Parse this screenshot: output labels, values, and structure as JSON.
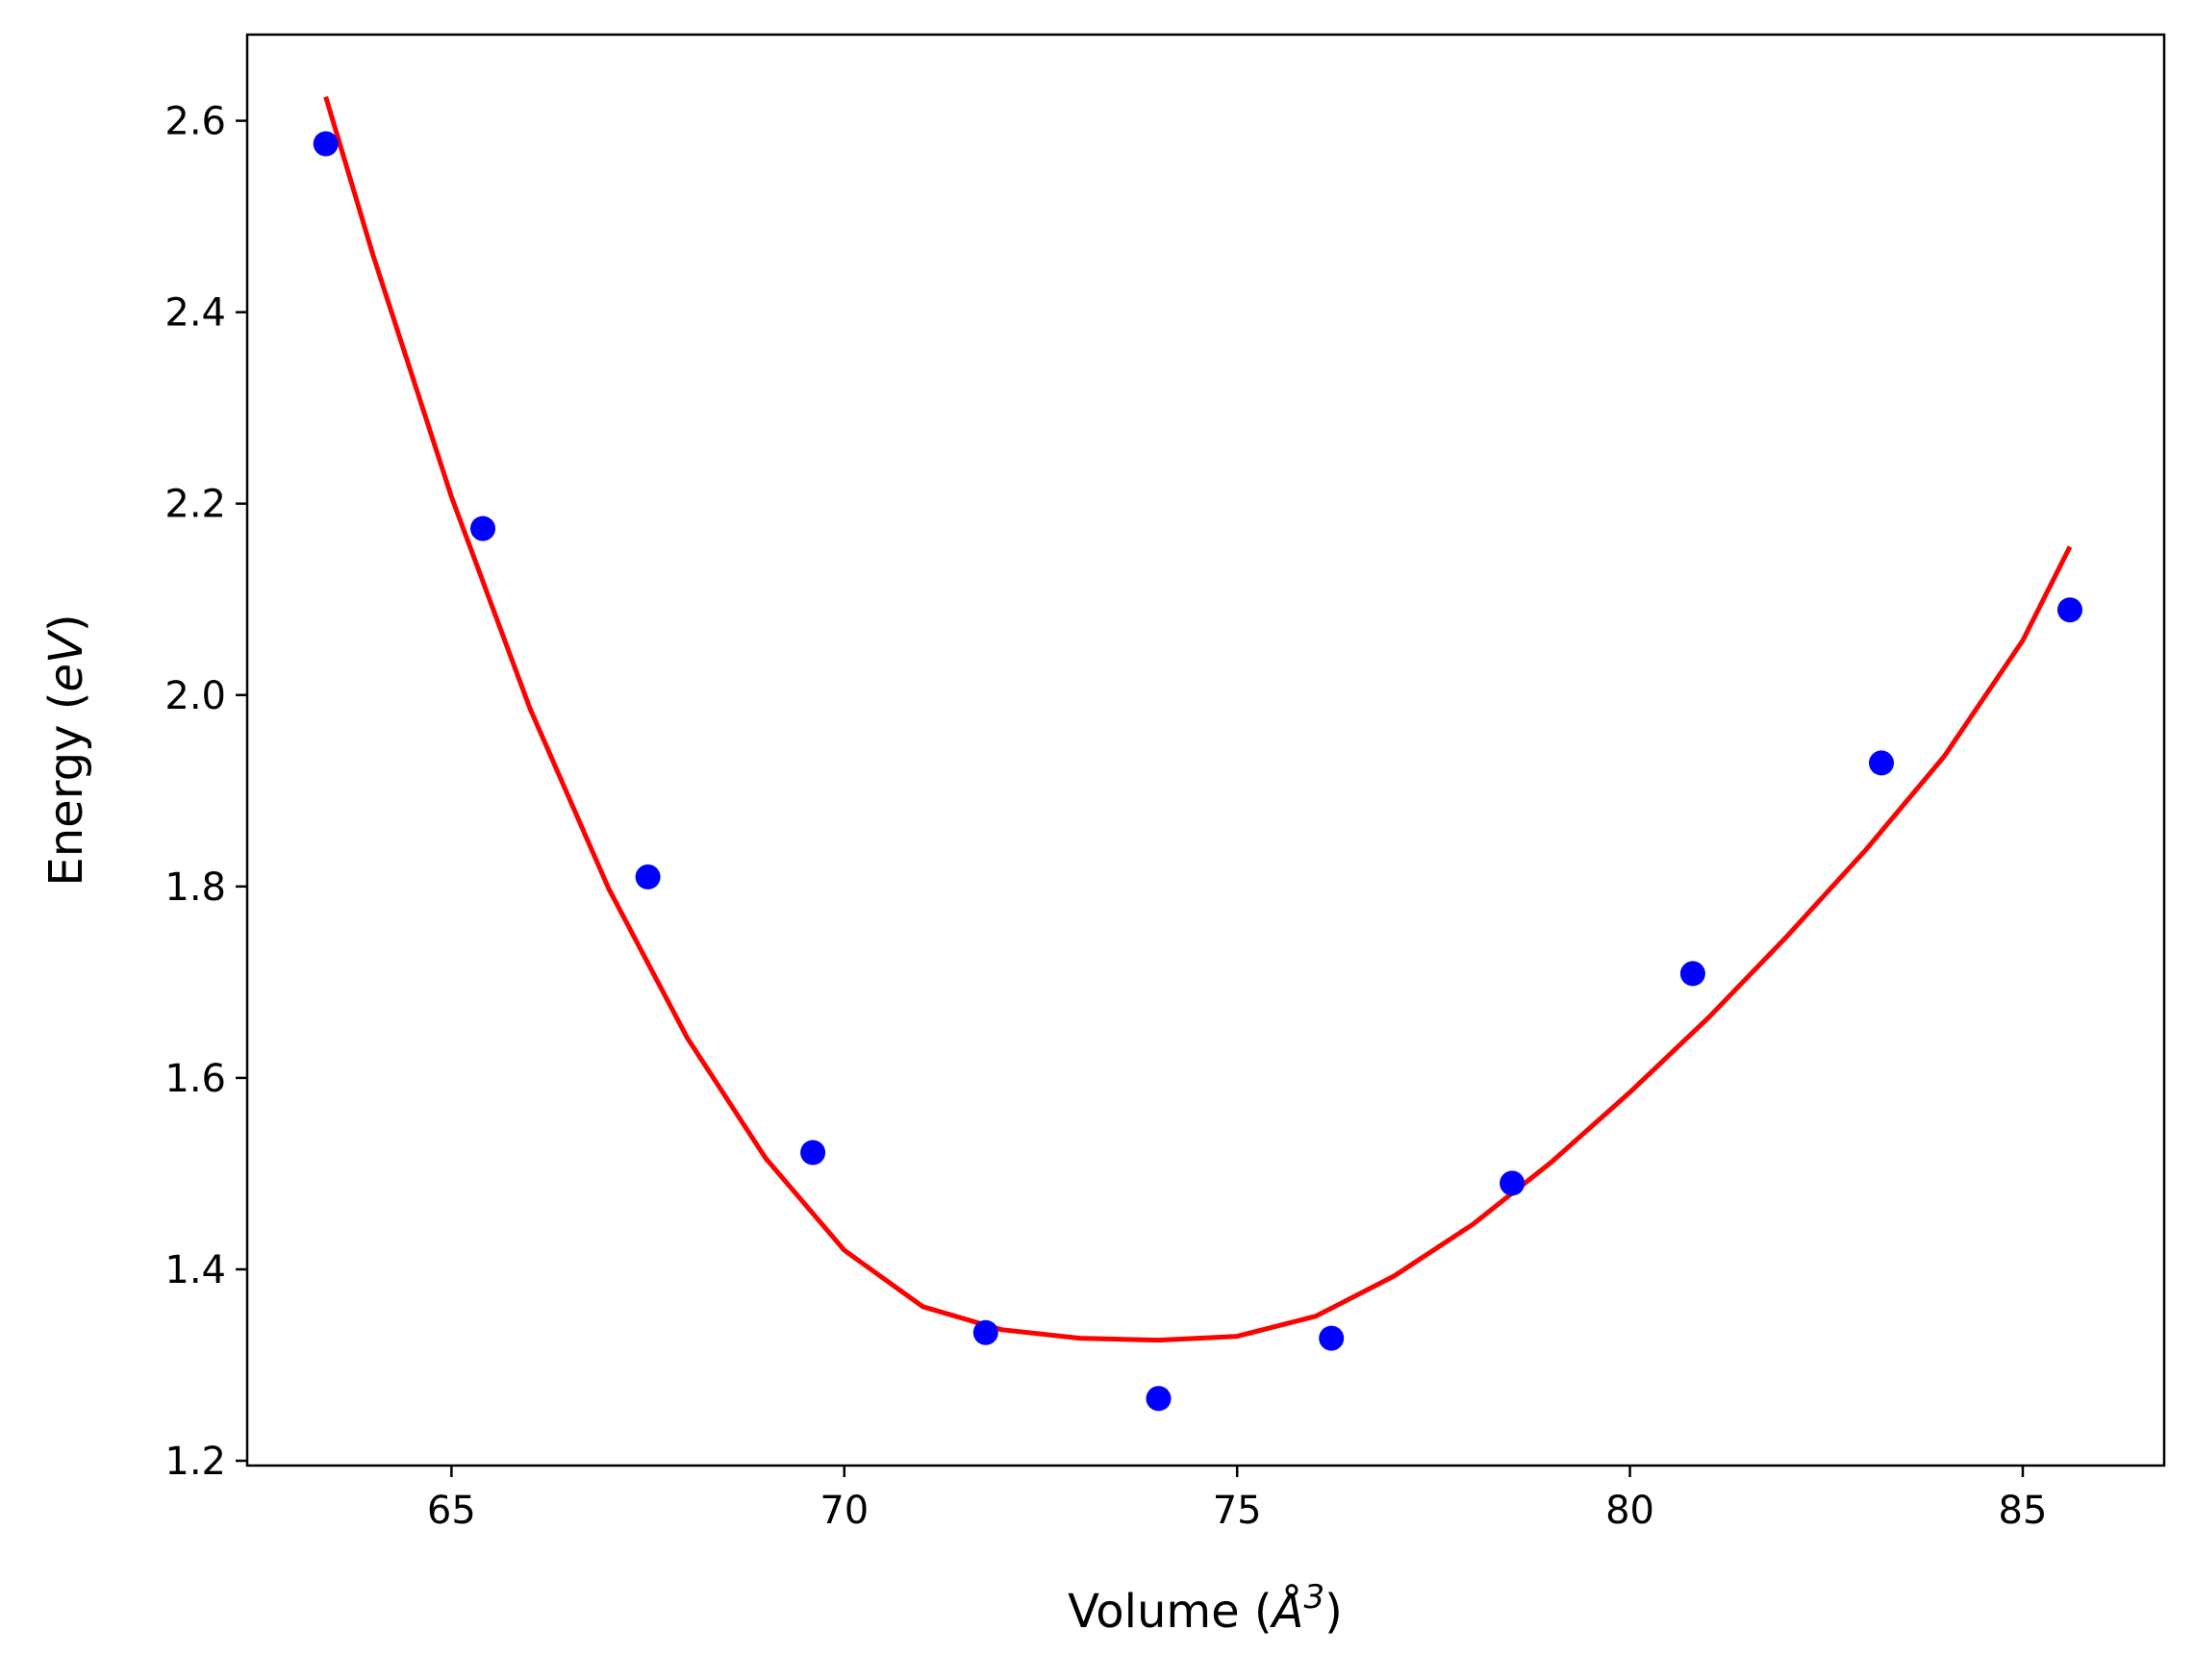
{
  "chart_data": {
    "type": "scatter",
    "title": "",
    "xlabel": {
      "prefix": "Volume (",
      "unit": "Å",
      "exponent": "3",
      "suffix": ")"
    },
    "ylabel": {
      "prefix": "Energy (",
      "unit": "eV",
      "suffix": ")"
    },
    "xlim": [
      62.4,
      86.8
    ],
    "ylim": [
      1.195,
      2.69
    ],
    "xticks": [
      65,
      70,
      75,
      80,
      85
    ],
    "xtick_labels": [
      "65",
      "70",
      "75",
      "80",
      "85"
    ],
    "yticks": [
      1.2,
      1.4,
      1.6,
      1.8,
      2.0,
      2.2,
      2.4,
      2.6
    ],
    "ytick_labels": [
      "1.2",
      "1.4",
      "1.6",
      "1.8",
      "2.0",
      "2.2",
      "2.4",
      "2.6"
    ],
    "grid": false,
    "series": [
      {
        "kind": "points",
        "color": "#0000ff",
        "x": [
          63.4,
          65.4,
          67.5,
          69.6,
          71.8,
          74.0,
          76.2,
          78.5,
          80.8,
          83.2,
          85.6
        ],
        "y": [
          2.576,
          2.174,
          1.81,
          1.522,
          1.334,
          1.265,
          1.328,
          1.49,
          1.709,
          1.929,
          2.089
        ]
      },
      {
        "kind": "fit-curve",
        "color": "#ff0000",
        "x": [
          63.4,
          64.0,
          65.0,
          66.0,
          67.0,
          68.0,
          69.0,
          70.0,
          71.0,
          72.0,
          73.0,
          74.0,
          75.0,
          76.0,
          77.0,
          78.0,
          79.0,
          80.0,
          81.0,
          82.0,
          83.0,
          84.0,
          85.0,
          85.6
        ],
        "y": [
          2.625,
          2.46,
          2.207,
          1.986,
          1.798,
          1.642,
          1.516,
          1.42,
          1.361,
          1.337,
          1.328,
          1.326,
          1.33,
          1.351,
          1.393,
          1.447,
          1.512,
          1.585,
          1.663,
          1.748,
          1.838,
          1.936,
          2.057,
          2.155
        ]
      }
    ]
  }
}
